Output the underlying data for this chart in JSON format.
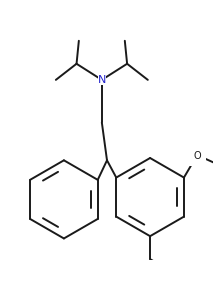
{
  "bg_color": "#ffffff",
  "line_color": "#1a1a1a",
  "line_width": 1.4,
  "N_color": "#2222cc",
  "O_color": "#1a1a1a"
}
